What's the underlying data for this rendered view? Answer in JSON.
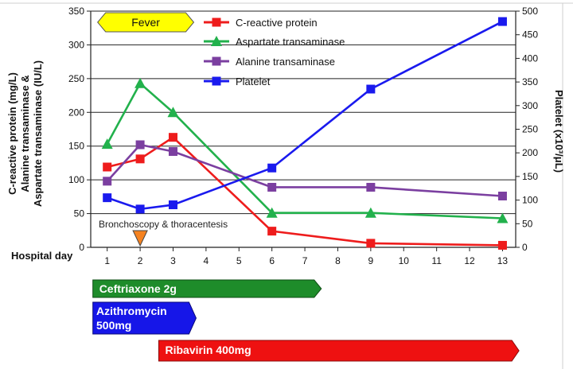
{
  "chart_data": {
    "type": "line",
    "x": [
      1,
      2,
      3,
      6,
      9,
      13
    ],
    "xlabel": "Hospital day",
    "x_ticks": [
      1,
      2,
      3,
      4,
      5,
      6,
      7,
      8,
      9,
      10,
      11,
      12,
      13
    ],
    "xlim": [
      0.5,
      13.4
    ],
    "ylabel_left": [
      "C-reactive protein (mg/L)",
      "Alanine transaminase &",
      "Aspartate transaminase (IU/L)"
    ],
    "ylim_left": [
      0,
      350
    ],
    "y_ticks_left": [
      0,
      50,
      100,
      150,
      200,
      250,
      300,
      350
    ],
    "ylabel_right": "Platelet (x10³/μL)",
    "ylim_right": [
      0,
      500
    ],
    "y_ticks_right": [
      0,
      50,
      100,
      150,
      200,
      250,
      300,
      350,
      400,
      450,
      500
    ],
    "grid": "horizontal",
    "series": [
      {
        "name": "C-reactive protein",
        "axis": "left",
        "color": "#ee1c1c",
        "marker": "square",
        "x": [
          1,
          2,
          3,
          6,
          9,
          13
        ],
        "values": [
          119,
          131,
          163,
          24,
          6,
          3
        ]
      },
      {
        "name": "Aspartate transaminase",
        "axis": "left",
        "color": "#22b14c",
        "marker": "triangle",
        "x": [
          1,
          2,
          3,
          6,
          9,
          13
        ],
        "values": [
          153,
          243,
          200,
          51,
          51,
          43
        ]
      },
      {
        "name": "Alanine transaminase",
        "axis": "left",
        "color": "#7b3fa0",
        "marker": "square",
        "x": [
          1,
          2,
          3,
          6,
          9,
          13
        ],
        "values": [
          98,
          152,
          142,
          89,
          89,
          76
        ]
      },
      {
        "name": "Platelet",
        "axis": "right",
        "color": "#1a1aee",
        "marker": "square",
        "x": [
          1,
          2,
          3,
          6,
          9,
          13
        ],
        "values": [
          105,
          81,
          90,
          168,
          335,
          478
        ]
      }
    ],
    "annotations": {
      "fever": {
        "label": "Fever",
        "from_day": 1,
        "to_day": 3,
        "color": "#ffff00"
      },
      "procedure": {
        "label": "Bronchoscopy & thoracentesis",
        "day": 2,
        "color": "#f58220"
      }
    },
    "treatments": [
      {
        "label": "Ceftriaxone  2g",
        "from_day": 1,
        "to_day": 7.5,
        "color": "#1e8c2a"
      },
      {
        "label": "Azithromycin 500mg",
        "lines": [
          "Azithromycin",
          "500mg"
        ],
        "from_day": 1,
        "to_day": 3.7,
        "color": "#1616e8"
      },
      {
        "label": "Ribavirin 400mg",
        "from_day": 3,
        "to_day": 13.5,
        "color": "#ee1111"
      }
    ]
  }
}
